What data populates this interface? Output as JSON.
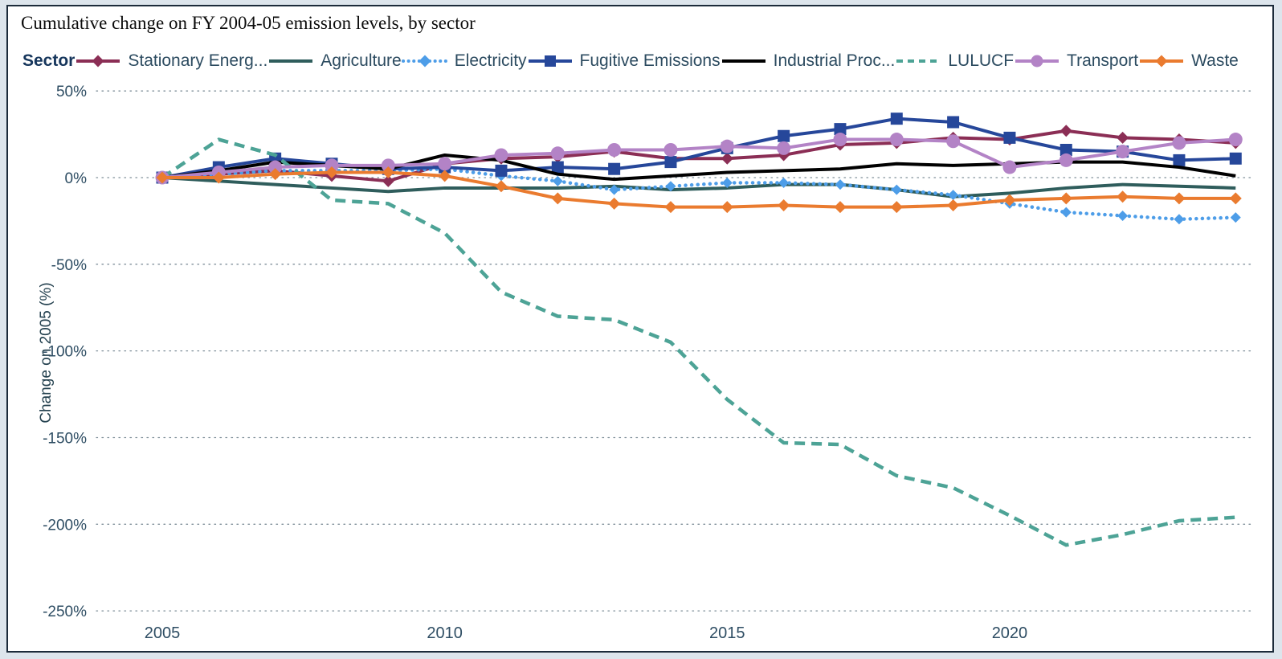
{
  "page": {
    "title": "Cumulative change on FY 2004-05 emission levels, by sector"
  },
  "legend": {
    "title": "Sector"
  },
  "axes": {
    "y_label": "Change on 2005 (%)",
    "y_ticks": [
      {
        "value": 50,
        "label": "50%"
      },
      {
        "value": 0,
        "label": "0%"
      },
      {
        "value": -50,
        "label": "-50%"
      },
      {
        "value": -100,
        "label": "-100%"
      },
      {
        "value": -150,
        "label": "-150%"
      },
      {
        "value": -200,
        "label": "-200%"
      },
      {
        "value": -250,
        "label": "-250%"
      }
    ],
    "x_ticks": [
      {
        "value": 2005,
        "label": "2005"
      },
      {
        "value": 2010,
        "label": "2010"
      },
      {
        "value": 2015,
        "label": "2015"
      },
      {
        "value": 2020,
        "label": "2020"
      }
    ]
  },
  "chart_data": {
    "type": "line",
    "title": "Cumulative change on FY 2004-05 emission levels, by sector",
    "xlabel": "",
    "ylabel": "Change on 2005 (%)",
    "ylim": [
      -250,
      50
    ],
    "xlim": [
      2005,
      2024
    ],
    "grid": "horizontal-dotted",
    "legend_position": "top",
    "x": [
      2005,
      2006,
      2007,
      2008,
      2009,
      2010,
      2011,
      2012,
      2013,
      2014,
      2015,
      2016,
      2017,
      2018,
      2019,
      2020,
      2021,
      2022,
      2023,
      2024
    ],
    "series": [
      {
        "id": "stationary-energy",
        "name": "Stationary Energ...",
        "color": "#8b2e55",
        "line_style": "solid",
        "marker": "diamond",
        "values": [
          0,
          2,
          4,
          1,
          -2,
          8,
          11,
          12,
          15,
          11,
          11,
          13,
          19,
          20,
          23,
          22,
          27,
          23,
          22,
          20
        ]
      },
      {
        "id": "agriculture",
        "name": "Agriculture",
        "color": "#2f5d5c",
        "line_style": "solid",
        "marker": "none",
        "values": [
          0,
          -2,
          -4,
          -6,
          -8,
          -6,
          -6,
          -6,
          -5,
          -7,
          -6,
          -4,
          -4,
          -7,
          -11,
          -9,
          -6,
          -4,
          -5,
          -6
        ]
      },
      {
        "id": "electricity",
        "name": "Electricity",
        "color": "#4d9de8",
        "line_style": "dotted",
        "marker": "diamond",
        "values": [
          0,
          2,
          4,
          4,
          4,
          5,
          1,
          -2,
          -7,
          -5,
          -3,
          -3,
          -4,
          -7,
          -10,
          -15,
          -20,
          -22,
          -24,
          -23
        ]
      },
      {
        "id": "fugitive-emissions",
        "name": "Fugitive Emissions",
        "color": "#26479a",
        "line_style": "solid",
        "marker": "square",
        "values": [
          0,
          6,
          11,
          8,
          5,
          6,
          4,
          6,
          5,
          9,
          17,
          24,
          28,
          34,
          32,
          23,
          16,
          15,
          10,
          11
        ]
      },
      {
        "id": "industrial-processes",
        "name": "Industrial Proc...",
        "color": "#000000",
        "line_style": "solid",
        "marker": "none",
        "values": [
          0,
          4,
          9,
          7,
          5,
          13,
          10,
          2,
          -1,
          1,
          3,
          4,
          5,
          8,
          7,
          8,
          9,
          9,
          6,
          1
        ]
      },
      {
        "id": "lulucf",
        "name": "LULUCF",
        "color": "#4da396",
        "line_style": "dashed",
        "marker": "none",
        "values": [
          0,
          22,
          13,
          -13,
          -15,
          -32,
          -66,
          -80,
          -82,
          -95,
          -128,
          -153,
          -154,
          -172,
          -179,
          -195,
          -212,
          -206,
          -198,
          -196
        ]
      },
      {
        "id": "transport",
        "name": "Transport",
        "color": "#b383c6",
        "line_style": "solid",
        "marker": "circle",
        "values": [
          0,
          3,
          6,
          7,
          7,
          8,
          13,
          14,
          16,
          16,
          18,
          17,
          22,
          22,
          21,
          6,
          10,
          15,
          20,
          22
        ]
      },
      {
        "id": "waste",
        "name": "Waste",
        "color": "#ea7b2f",
        "line_style": "solid",
        "marker": "diamond",
        "values": [
          0,
          0,
          2,
          3,
          3,
          1,
          -5,
          -12,
          -15,
          -17,
          -17,
          -16,
          -17,
          -17,
          -16,
          -13,
          -12,
          -11,
          -12,
          -12
        ]
      }
    ]
  }
}
